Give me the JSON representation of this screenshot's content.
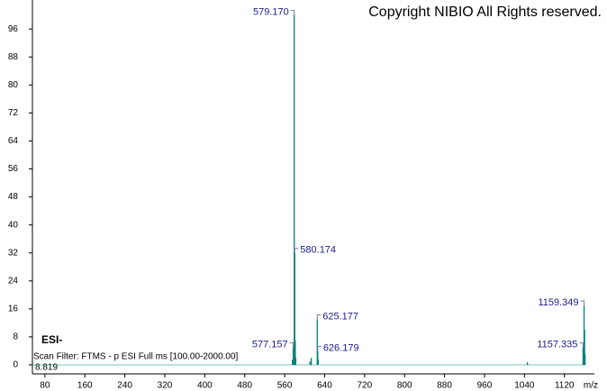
{
  "chart_data": {
    "type": "stem",
    "copyright": "Copyright NIBIO All Rights reserved.",
    "ionization": "ESI-",
    "scan_filter": "Scan Filter: FTMS - p ESI Full ms [100.00-2000.00]",
    "retention": "8.819",
    "xlabel": "m/z",
    "color": "#00807a",
    "xlim": [
      55,
      1180
    ],
    "ylim": [
      0,
      103
    ],
    "xticks": [
      80,
      160,
      240,
      320,
      400,
      480,
      560,
      640,
      720,
      800,
      880,
      960,
      1040,
      1120
    ],
    "yticks": [
      0,
      8,
      16,
      24,
      32,
      40,
      48,
      56,
      64,
      72,
      80,
      88,
      96
    ],
    "x": [
      577.157,
      579.17,
      580.174,
      625.177,
      626.179,
      1157.335,
      1159.349
    ],
    "values": [
      5,
      100,
      32,
      13,
      4,
      5,
      17
    ],
    "peak_labels": [
      "577.157",
      "579.170",
      "580.174",
      "625.177",
      "626.179",
      "1157.335",
      "1159.349"
    ],
    "minor_x": [
      575.5,
      581.2,
      582.2,
      610.5,
      613.2,
      627.2,
      1160.35,
      1161.35,
      1046
    ],
    "minor_values": [
      1.5,
      7,
      2,
      1,
      2,
      1.5,
      10,
      3,
      0.8
    ]
  }
}
